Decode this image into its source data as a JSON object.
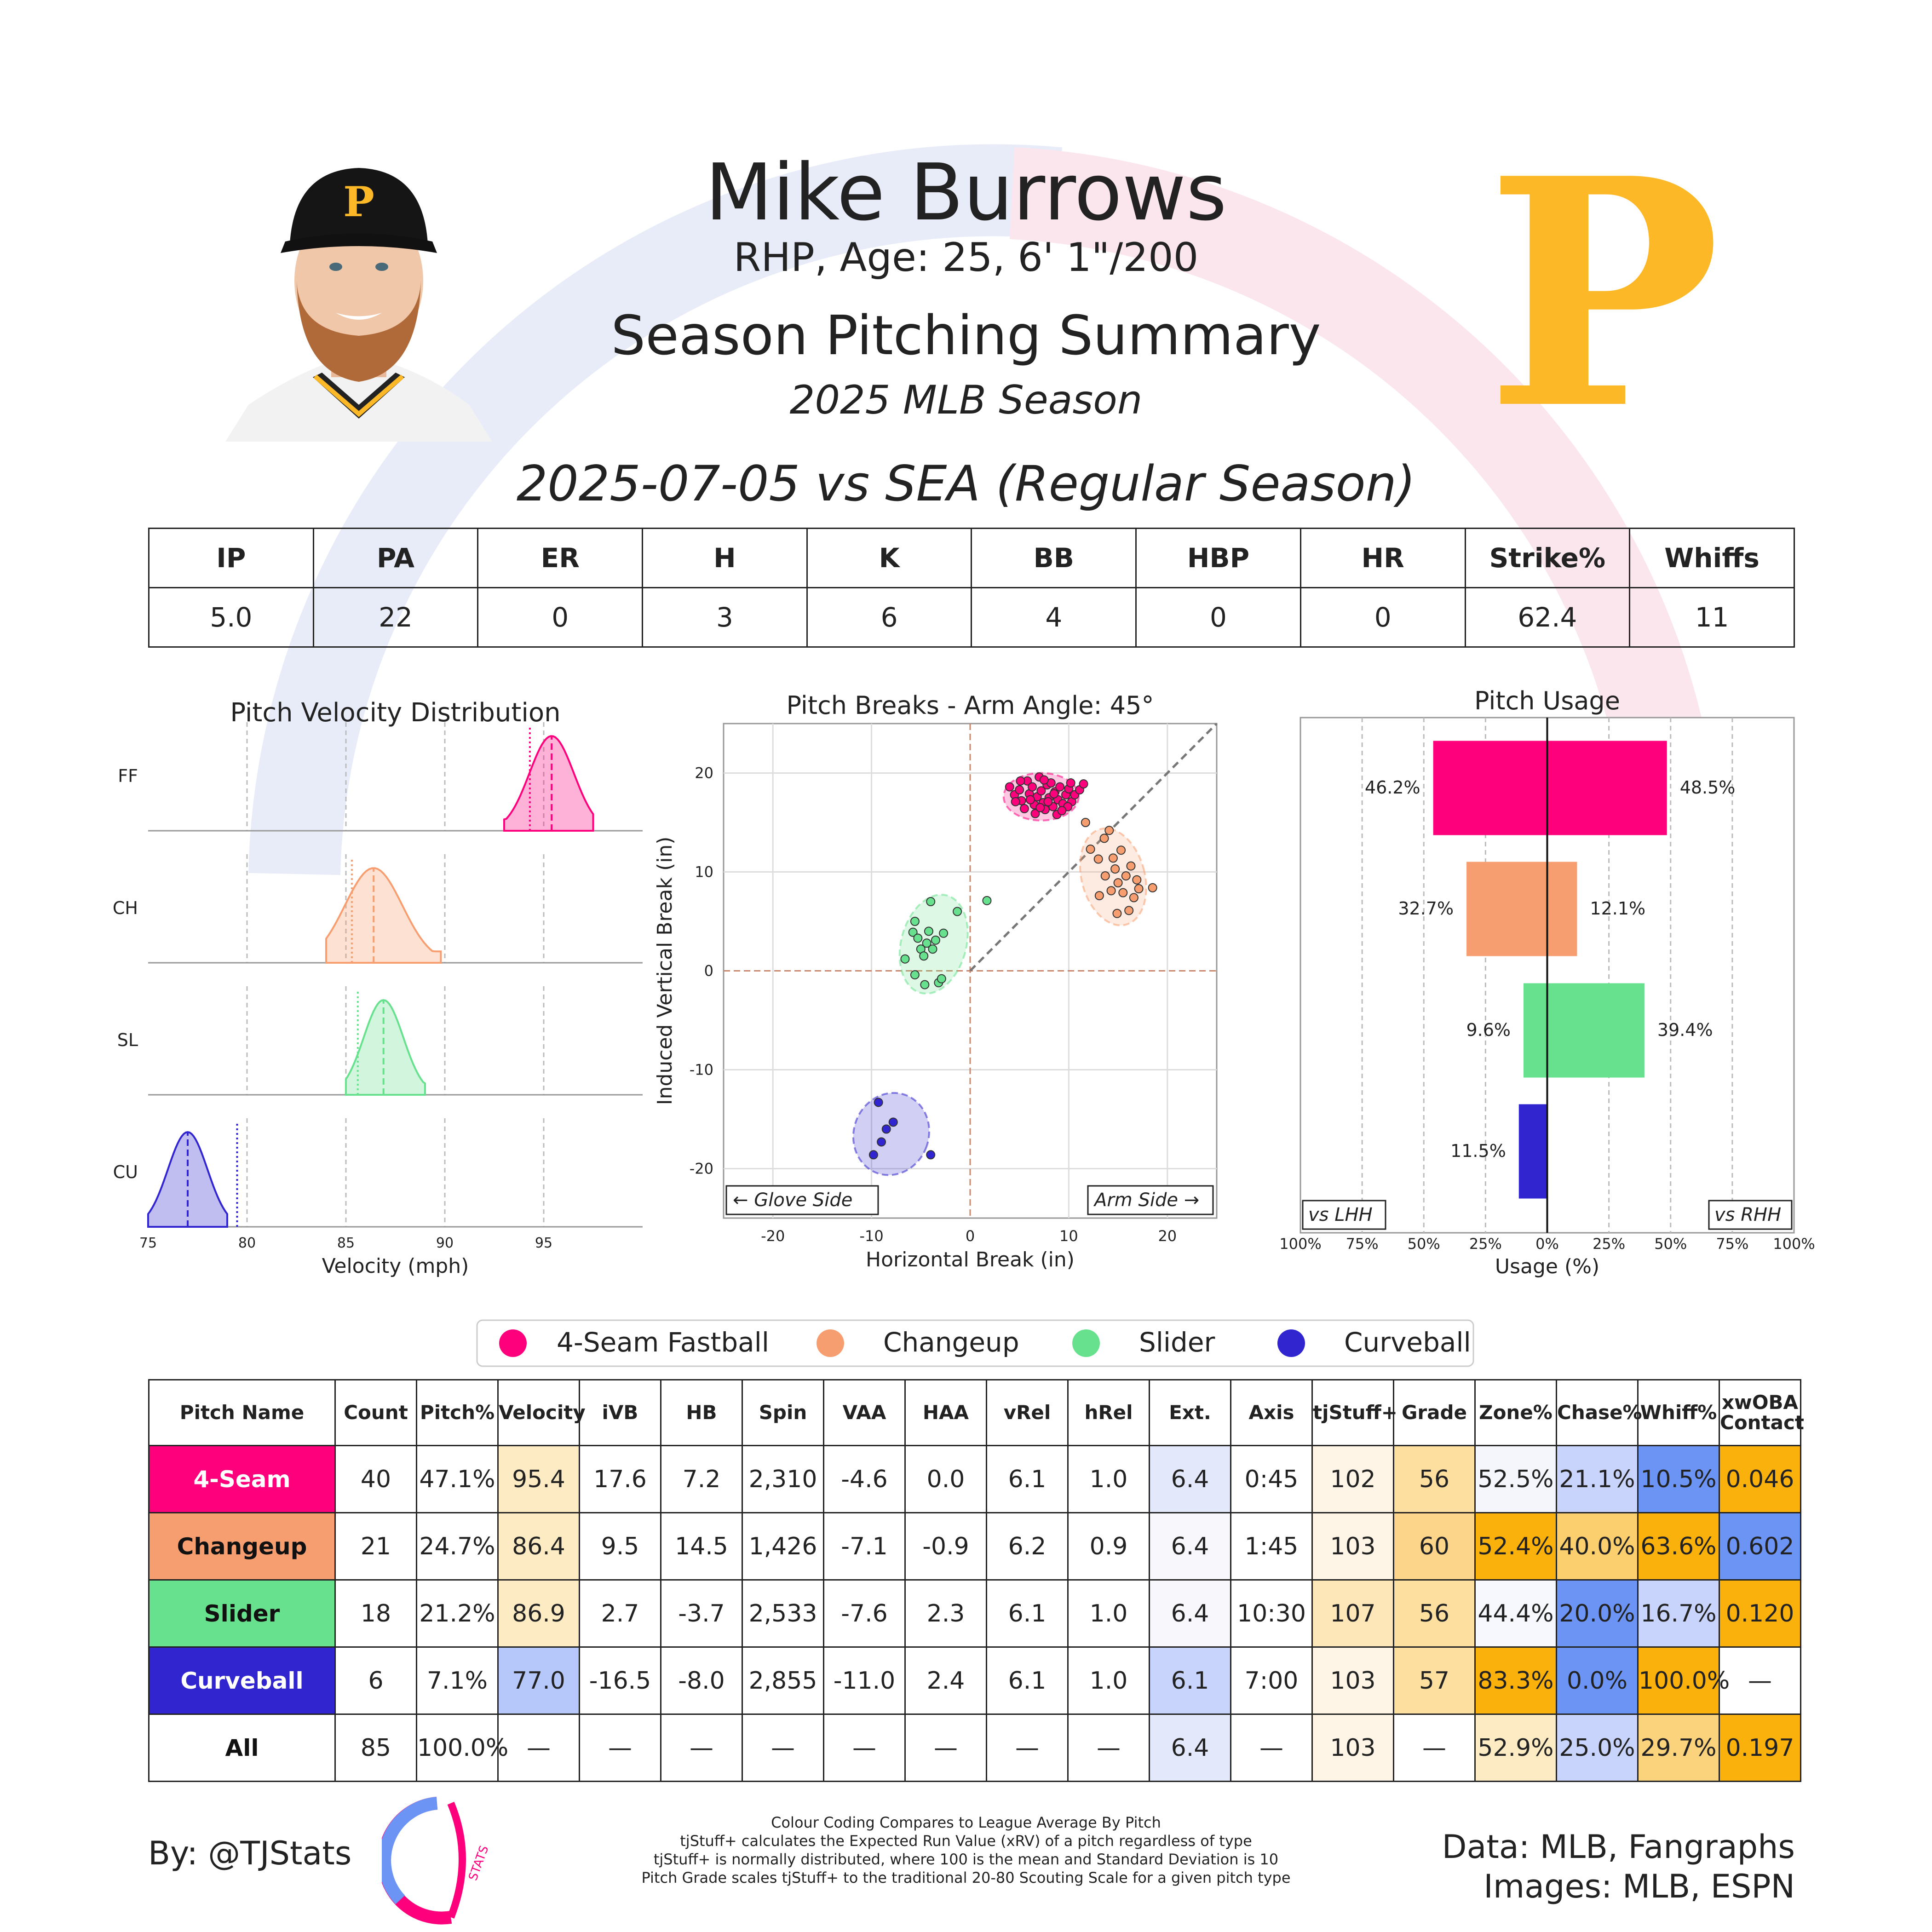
{
  "header": {
    "name": "Mike Burrows",
    "bio": "RHP, Age: 25, 6' 1\"/200",
    "title": "Season Pitching Summary",
    "season": "2025 MLB Season",
    "game": "2025-07-05 vs SEA (Regular Season)",
    "team_logo_letter": "P",
    "team_color": "#FDB827"
  },
  "summary": {
    "headers": [
      "IP",
      "PA",
      "ER",
      "H",
      "K",
      "BB",
      "HBP",
      "HR",
      "Strike%",
      "Whiffs"
    ],
    "values": [
      "5.0",
      "22",
      "0",
      "3",
      "6",
      "4",
      "0",
      "0",
      "62.4",
      "11"
    ]
  },
  "colors": {
    "4-Seam Fastball": "#FF007D",
    "Changeup": "#F79E70",
    "Slider": "#67E18D",
    "Curveball": "#3025CE"
  },
  "chart_data": [
    {
      "type": "area",
      "title": "Pitch Velocity Distribution",
      "xlabel": "Velocity (mph)",
      "xlim": [
        75,
        100
      ],
      "xticks": [
        "75",
        "80",
        "85",
        "90",
        "95"
      ],
      "rows": [
        {
          "label": "FF",
          "pitch": "4-Seam Fastball",
          "min": 93,
          "max": 97.5,
          "mean": 95.4,
          "league": 94.3
        },
        {
          "label": "CH",
          "pitch": "Changeup",
          "min": 84,
          "max": 89.8,
          "mean": 86.4,
          "league": 85.3
        },
        {
          "label": "SL",
          "pitch": "Slider",
          "min": 85,
          "max": 89,
          "mean": 86.9,
          "league": 85.6
        },
        {
          "label": "CU",
          "pitch": "Curveball",
          "min": 75,
          "max": 79,
          "mean": 77.0,
          "league": 79.5
        }
      ]
    },
    {
      "type": "scatter",
      "title": "Pitch Breaks - Arm Angle: 45°",
      "xlabel": "Horizontal Break (in)",
      "ylabel": "Induced Vertical Break (in)",
      "xlim": [
        -25,
        25
      ],
      "ylim": [
        -25,
        25
      ],
      "xticks": [
        "-20",
        "-10",
        "0",
        "10",
        "20"
      ],
      "yticks": [
        "20",
        "10",
        "0",
        "-10",
        "-20"
      ],
      "left_label": "← Glove Side",
      "right_label": "Arm Side →",
      "series": [
        {
          "pitch": "4-Seam Fastball",
          "cx": 7.2,
          "cy": 17.6,
          "rx": 3.8,
          "ry": 2.4,
          "angle": 0,
          "points": [
            [
              4,
              18.6
            ],
            [
              4.5,
              17.8
            ],
            [
              5,
              18.3
            ],
            [
              5.2,
              17.2
            ],
            [
              5.8,
              19.2
            ],
            [
              6,
              17.9
            ],
            [
              6.3,
              18.6
            ],
            [
              6.5,
              16.8
            ],
            [
              6.8,
              17.6
            ],
            [
              7,
              19.6
            ],
            [
              7.2,
              18.2
            ],
            [
              7.4,
              17
            ],
            [
              7.6,
              16.3
            ],
            [
              7.8,
              18.8
            ],
            [
              8,
              17.5
            ],
            [
              8.2,
              19
            ],
            [
              8.4,
              16.6
            ],
            [
              8.6,
              18.1
            ],
            [
              8.9,
              17.3
            ],
            [
              9.1,
              18.6
            ],
            [
              9.4,
              16.9
            ],
            [
              9.7,
              17.8
            ],
            [
              10,
              18.4
            ],
            [
              10.3,
              17.1
            ],
            [
              10.6,
              17.8
            ],
            [
              11.1,
              18.3
            ],
            [
              11.5,
              18.9
            ],
            [
              5.5,
              16.4
            ],
            [
              6.6,
              15.9
            ],
            [
              7.5,
              19.3
            ],
            [
              8.8,
              15.8
            ],
            [
              9.9,
              16.6
            ],
            [
              5.1,
              19.2
            ],
            [
              6.1,
              17.3
            ],
            [
              7.9,
              17.1
            ],
            [
              8.5,
              17.9
            ],
            [
              9.3,
              16.2
            ],
            [
              10.2,
              19
            ],
            [
              4.6,
              17.1
            ],
            [
              7.1,
              16.5
            ]
          ]
        },
        {
          "pitch": "Changeup",
          "cx": 14.5,
          "cy": 9.5,
          "rx": 3.2,
          "ry": 5.0,
          "angle": -15,
          "points": [
            [
              11.7,
              15
            ],
            [
              12.2,
              12.3
            ],
            [
              13,
              11.3
            ],
            [
              13.6,
              13.4
            ],
            [
              14.1,
              14.2
            ],
            [
              14.5,
              11.4
            ],
            [
              14.7,
              10.3
            ],
            [
              15,
              8.9
            ],
            [
              15.5,
              7.9
            ],
            [
              15.8,
              9.6
            ],
            [
              16.3,
              10.6
            ],
            [
              16.6,
              7.4
            ],
            [
              17.1,
              8.3
            ],
            [
              18.5,
              8.4
            ],
            [
              13.7,
              9.6
            ],
            [
              14.9,
              5.8
            ],
            [
              16.1,
              6.1
            ],
            [
              13.1,
              7.6
            ],
            [
              15.3,
              12.2
            ],
            [
              16.9,
              9.2
            ],
            [
              14.3,
              8.1
            ]
          ]
        },
        {
          "pitch": "Slider",
          "cx": -3.7,
          "cy": 2.7,
          "rx": 3.3,
          "ry": 5.1,
          "angle": 15,
          "points": [
            [
              -6.6,
              1.2
            ],
            [
              -5.8,
              3.9
            ],
            [
              -5.6,
              -0.4
            ],
            [
              -5.3,
              3.3
            ],
            [
              -5,
              2.2
            ],
            [
              -4.7,
              1.5
            ],
            [
              -4.4,
              2.8
            ],
            [
              -4.2,
              4
            ],
            [
              -4,
              7
            ],
            [
              -3.8,
              2.2
            ],
            [
              -3.5,
              3.1
            ],
            [
              -3.2,
              -1.2
            ],
            [
              -2.9,
              -0.8
            ],
            [
              -2.7,
              3.8
            ],
            [
              -1.3,
              6
            ],
            [
              1.7,
              7.1
            ],
            [
              -4.6,
              -1.4
            ],
            [
              -5.6,
              5
            ]
          ]
        },
        {
          "pitch": "Curveball",
          "cx": -8.0,
          "cy": -16.5,
          "rx": 3.8,
          "ry": 4.2,
          "angle": 20,
          "points": [
            [
              -9.3,
              -13.3
            ],
            [
              -8.5,
              -16
            ],
            [
              -9,
              -17.3
            ],
            [
              -7.8,
              -15.3
            ],
            [
              -9.8,
              -18.6
            ],
            [
              -4,
              -18.6
            ]
          ]
        }
      ]
    },
    {
      "type": "bar",
      "title": "Pitch Usage",
      "xlabel": "Usage (%)",
      "xlim": [
        -100,
        100
      ],
      "xticks": [
        "100%",
        "75%",
        "50%",
        "25%",
        "0%",
        "25%",
        "50%",
        "75%",
        "100%"
      ],
      "left_label": "vs LHH",
      "right_label": "vs RHH",
      "categories": [
        "4-Seam Fastball",
        "Changeup",
        "Slider",
        "Curveball"
      ],
      "series": [
        {
          "name": "vs LHH",
          "values": [
            46.2,
            32.7,
            9.6,
            11.5
          ],
          "labels": [
            "46.2%",
            "32.7%",
            "9.6%",
            "11.5%"
          ]
        },
        {
          "name": "vs RHH",
          "values": [
            48.5,
            12.1,
            39.4,
            0
          ],
          "labels": [
            "48.5%",
            "12.1%",
            "39.4%",
            ""
          ]
        }
      ]
    }
  ],
  "legend": [
    "4-Seam Fastball",
    "Changeup",
    "Slider",
    "Curveball"
  ],
  "pitch_table": {
    "headers": [
      "Pitch Name",
      "Count",
      "Pitch%",
      "Velocity",
      "iVB",
      "HB",
      "Spin",
      "VAA",
      "HAA",
      "vRel",
      "hRel",
      "Ext.",
      "Axis",
      "tjStuff+",
      "Grade",
      "Zone%",
      "Chase%",
      "Whiff%",
      "xwOBA Contact"
    ],
    "rows": [
      {
        "name": "4-Seam",
        "color": "#FF007D",
        "text_color": "#ffffff",
        "cells": [
          "40",
          "47.1%",
          "95.4",
          "17.6",
          "7.2",
          "2,310",
          "-4.6",
          "0.0",
          "6.1",
          "1.0",
          "6.4",
          "0:45",
          "102",
          "56",
          "52.5%",
          "21.1%",
          "10.5%",
          "0.046"
        ],
        "bg": {
          "3": "#FDEBC4",
          "11": "#E3E9FB",
          "13": "#FEF5E6",
          "14": "#FDDFA0",
          "15": "#F5F6FC",
          "16": "#C8D4FB",
          "17": "#6B94F5",
          "18": "#FBB10C"
        }
      },
      {
        "name": "Changeup",
        "color": "#F79E70",
        "text_color": "#111111",
        "cells": [
          "21",
          "24.7%",
          "86.4",
          "9.5",
          "14.5",
          "1,426",
          "-7.1",
          "-0.9",
          "6.2",
          "0.9",
          "6.4",
          "1:45",
          "103",
          "60",
          "52.4%",
          "40.0%",
          "63.6%",
          "0.602"
        ],
        "bg": {
          "3": "#FDEBC4",
          "11": "#F8F8FC",
          "13": "#FEF5E6",
          "14": "#FDD58A",
          "15": "#FBB10C",
          "16": "#FCCF6E",
          "17": "#FBB10C",
          "18": "#6B94F5"
        }
      },
      {
        "name": "Slider",
        "color": "#67E18D",
        "text_color": "#111111",
        "cells": [
          "18",
          "21.2%",
          "86.9",
          "2.7",
          "-3.7",
          "2,533",
          "-7.6",
          "2.3",
          "6.1",
          "1.0",
          "6.4",
          "10:30",
          "107",
          "56",
          "44.4%",
          "20.0%",
          "16.7%",
          "0.120"
        ],
        "bg": {
          "3": "#FDEBC4",
          "11": "#F8F8FC",
          "13": "#FDE6B8",
          "14": "#FDDFA0",
          "15": "#F7F8FD",
          "16": "#6B94F5",
          "17": "#C8D4FB",
          "18": "#FBB10C"
        }
      },
      {
        "name": "Curveball",
        "color": "#3025CE",
        "text_color": "#ffffff",
        "cells": [
          "6",
          "7.1%",
          "77.0",
          "-16.5",
          "-8.0",
          "2,855",
          "-11.0",
          "2.4",
          "6.1",
          "1.0",
          "6.1",
          "7:00",
          "103",
          "57",
          "83.3%",
          "0.0%",
          "100.0%",
          "—"
        ],
        "bg": {
          "3": "#B6C8FA",
          "11": "#C8D4FB",
          "13": "#FEF5E6",
          "14": "#FDDFA0",
          "15": "#FBB10C",
          "16": "#6B94F5",
          "17": "#FBB10C"
        }
      },
      {
        "name": "All",
        "color": "#ffffff",
        "text_color": "#111111",
        "cells": [
          "85",
          "100.0%",
          "—",
          "—",
          "—",
          "—",
          "—",
          "—",
          "—",
          "—",
          "6.4",
          "—",
          "103",
          "—",
          "52.9%",
          "25.0%",
          "29.7%",
          "0.197"
        ],
        "bg": {
          "11": "#E3E9FB",
          "13": "#FEF5E6",
          "15": "#FDEBC4",
          "16": "#C8D4FB",
          "17": "#FCD37D",
          "18": "#FBB10C"
        }
      }
    ]
  },
  "footer": {
    "by": "By: @TJStats",
    "logo_text": "STATS",
    "note_lines": [
      "Colour Coding Compares to League Average By Pitch",
      "tjStuff+ calculates the Expected Run Value (xRV) of a pitch regardless of type",
      "tjStuff+ is normally distributed, where 100 is the mean and Standard Deviation is 10",
      "Pitch Grade scales tjStuff+ to the traditional 20-80 Scouting Scale for a given pitch type"
    ],
    "data_source": "Data: MLB, Fangraphs",
    "image_source": "Images: MLB, ESPN"
  }
}
